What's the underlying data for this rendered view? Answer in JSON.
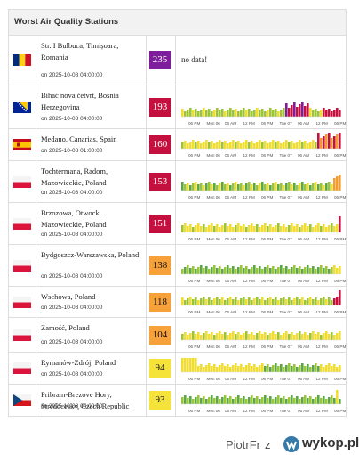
{
  "table": {
    "title": "Worst Air Quality Stations",
    "rows": [
      {
        "country": "Romania",
        "flag": "romania-flag",
        "station": "Str. I Bulbuca, Timișoara, Romania",
        "time": "on 2025-10-08 04:00:00",
        "aqi": "235",
        "aqi_color": "#7e1e9c",
        "aqi_text_color": "#ffffff",
        "nodata": "no data!"
      },
      {
        "country": "Bosnia Herzegovina",
        "flag": "bosnia-flag",
        "station": "Bihać nova četvrt, Bosnia Herzegovina",
        "time": "on 2025-10-08 04:00:00",
        "aqi": "193",
        "aqi_color": "#c4103f",
        "aqi_text_color": "#ffffff"
      },
      {
        "country": "Spain",
        "flag": "spain-flag",
        "station": "Medano, Canarias, Spain",
        "time": "on 2025-10-08 01:00:00",
        "aqi": "160",
        "aqi_color": "#c4103f",
        "aqi_text_color": "#ffffff"
      },
      {
        "country": "Poland",
        "flag": "poland-flag",
        "station": "Tochtermana, Radom, Mazowieckie, Poland",
        "time": "on 2025-10-08 04:00:00",
        "aqi": "153",
        "aqi_color": "#c4103f",
        "aqi_text_color": "#ffffff"
      },
      {
        "country": "Poland",
        "flag": "poland-flag",
        "station": "Brzozowa, Otwock, Mazowieckie, Poland",
        "time": "on 2025-10-08 04:00:00",
        "aqi": "151",
        "aqi_color": "#c4103f",
        "aqi_text_color": "#ffffff"
      },
      {
        "country": "Poland",
        "flag": "poland-flag",
        "station": "Bydgoszcz-Warszawska, Poland",
        "time": "on 2025-10-08 04:00:00",
        "aqi": "138",
        "aqi_color": "#f7a13a",
        "aqi_text_color": "#111111"
      },
      {
        "country": "Poland",
        "flag": "poland-flag",
        "station": "Wschowa, Poland",
        "time": "on 2025-10-08 04:00:00",
        "aqi": "118",
        "aqi_color": "#f7a13a",
        "aqi_text_color": "#111111"
      },
      {
        "country": "Poland",
        "flag": "poland-flag",
        "station": "Zamość, Poland",
        "time": "on 2025-10-08 04:00:00",
        "aqi": "104",
        "aqi_color": "#f7a13a",
        "aqi_text_color": "#111111"
      },
      {
        "country": "Poland",
        "flag": "poland-flag",
        "station": "Rymanów-Zdrój, Poland",
        "time": "on 2025-10-08 04:00:00",
        "aqi": "94",
        "aqi_color": "#f6e33a",
        "aqi_text_color": "#111111"
      },
      {
        "country": "Czech Republic",
        "flag": "czech-flag",
        "station": "Pribram-Brezove Hory, Stredocesky, Czech Republic",
        "time": "on 2025-10-08 04:00:00",
        "aqi": "93",
        "aqi_color": "#f6e33a",
        "aqi_text_color": "#111111"
      }
    ],
    "axis_ticks": [
      "06 PM",
      "Mon 06",
      "06 AM",
      "12 PM",
      "06 PM",
      "Tue 07",
      "06 AM",
      "12 PM",
      "06 PM"
    ]
  },
  "footer": {
    "username": "PiotrFr",
    "suffix": "z",
    "brand": "wykop.pl",
    "brand_color": "#367aa9"
  },
  "palette": {
    "good": "#5aa845",
    "moderate_low": "#9cc43a",
    "moderate": "#f0dc33",
    "unhealthy_sensitive": "#f39a30",
    "unhealthy": "#c4103f",
    "very_unhealthy": "#7e1e9c"
  }
}
